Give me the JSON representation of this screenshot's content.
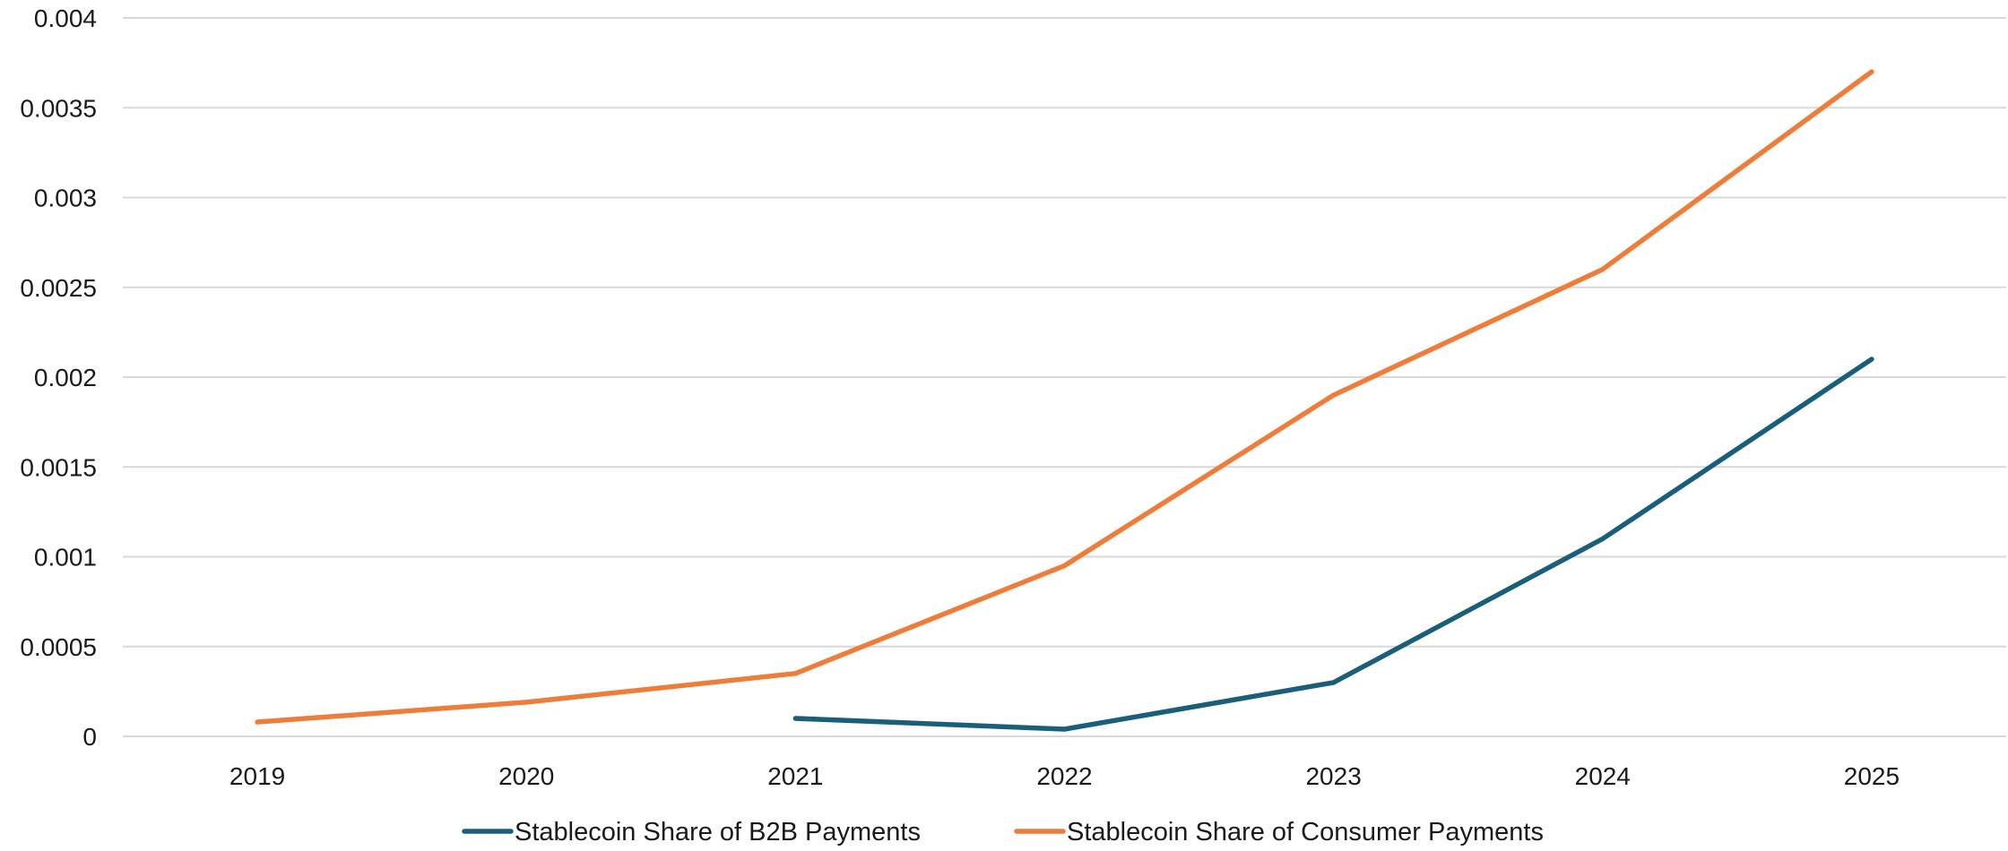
{
  "chart_data": {
    "type": "line",
    "title": "",
    "xlabel": "",
    "ylabel": "",
    "categories": [
      "2019",
      "2020",
      "2021",
      "2022",
      "2023",
      "2024",
      "2025"
    ],
    "y_ticks": [
      "0",
      "0.0005",
      "0.001",
      "0.0015",
      "0.002",
      "0.0025",
      "0.003",
      "0.0035",
      "0.004"
    ],
    "ylim": [
      0,
      0.004
    ],
    "grid": "horizontal",
    "legend_position": "bottom",
    "series": [
      {
        "name": "Stablecoin Share of B2B Payments",
        "color": "#1a5f7a",
        "values": [
          null,
          null,
          0.0001,
          4e-05,
          0.0003,
          0.0011,
          0.0021
        ]
      },
      {
        "name": "Stablecoin Share of Consumer Payments",
        "color": "#ef7d3a",
        "values": [
          8e-05,
          0.00019,
          0.00035,
          0.00095,
          0.0019,
          0.0026,
          0.0037
        ]
      }
    ]
  }
}
